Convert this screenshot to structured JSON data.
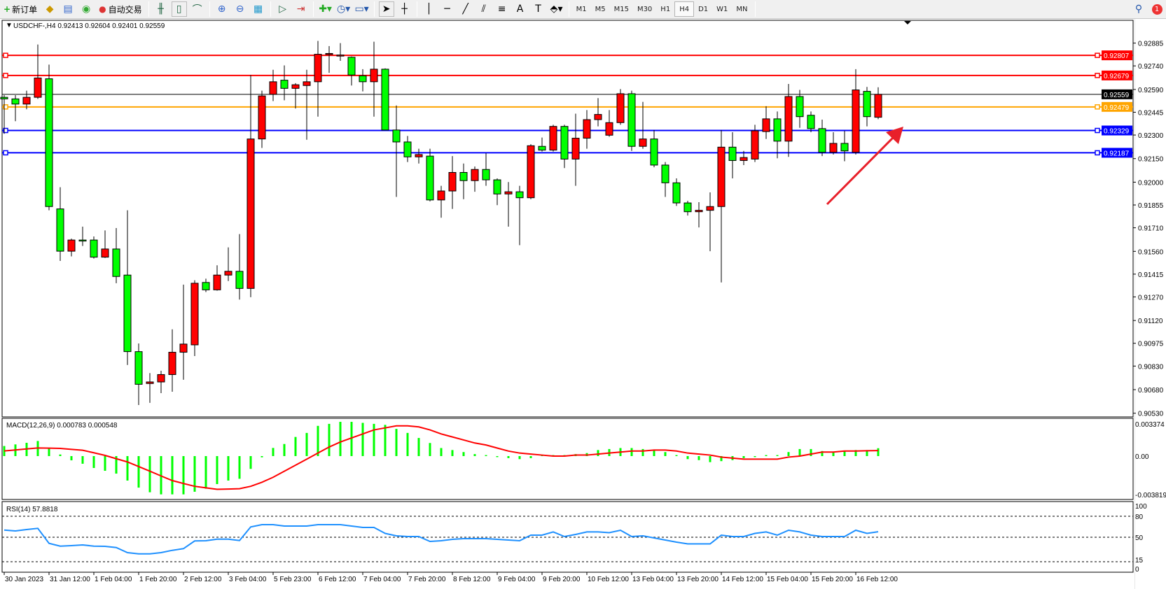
{
  "toolbar": {
    "new_order": "新订单",
    "auto_trading": "自动交易",
    "timeframes": [
      "M1",
      "M5",
      "M15",
      "M30",
      "H1",
      "H4",
      "D1",
      "W1",
      "MN"
    ],
    "active_timeframe": "H4",
    "notification_count": "1"
  },
  "chart": {
    "header": "USDCHF-,H4  0.92413 0.92604 0.92401 0.92559",
    "symbol": "USDCHF-",
    "timeframe": "H4",
    "ohlc": {
      "open": 0.92413,
      "high": 0.92604,
      "low": 0.92401,
      "close": 0.92559
    },
    "bull_color": "#ff0000",
    "bear_color": "#00ff00",
    "price_ticks": [
      "0.92885",
      "0.92740",
      "0.92590",
      "0.92445",
      "0.92300",
      "0.92150",
      "0.92000",
      "0.91855",
      "0.91710",
      "0.91560",
      "0.91415",
      "0.91270",
      "0.91120",
      "0.90975",
      "0.90830",
      "0.90680",
      "0.90530"
    ],
    "levels": [
      {
        "price": "0.92807",
        "color": "#ff0000"
      },
      {
        "price": "0.92679",
        "color": "#ff0000"
      },
      {
        "price": "0.92559",
        "color": "#000000"
      },
      {
        "price": "0.92479",
        "color": "#ffa500"
      },
      {
        "price": "0.92329",
        "color": "#0000ff"
      },
      {
        "price": "0.92187",
        "color": "#0000ff"
      }
    ],
    "time_labels": [
      "30 Jan 2023",
      "31 Jan 12:00",
      "1 Feb 04:00",
      "1 Feb 20:00",
      "2 Feb 12:00",
      "3 Feb 04:00",
      "5 Feb 23:00",
      "6 Feb 12:00",
      "7 Feb 04:00",
      "7 Feb 20:00",
      "8 Feb 12:00",
      "9 Feb 04:00",
      "9 Feb 20:00",
      "10 Feb 12:00",
      "13 Feb 04:00",
      "13 Feb 20:00",
      "14 Feb 12:00",
      "15 Feb 04:00",
      "15 Feb 20:00",
      "16 Feb 12:00"
    ],
    "annotation_arrow_color": "#e8202a",
    "candles_ohlc": [
      [
        0.9254,
        0.92554,
        0.92308,
        0.9253
      ],
      [
        0.9253,
        0.92554,
        0.92388,
        0.92497
      ],
      [
        0.92497,
        0.92582,
        0.92464,
        0.9254
      ],
      [
        0.9254,
        0.92876,
        0.9253,
        0.92663
      ],
      [
        0.92658,
        0.92748,
        0.91821,
        0.91845
      ],
      [
        0.9183,
        0.91968,
        0.91499,
        0.91561
      ],
      [
        0.91561,
        0.91641,
        0.91528,
        0.91632
      ],
      [
        0.91632,
        0.91717,
        0.91594,
        0.9163
      ],
      [
        0.91632,
        0.91655,
        0.91514,
        0.91523
      ],
      [
        0.91523,
        0.91693,
        0.91518,
        0.91575
      ],
      [
        0.91575,
        0.91708,
        0.91357,
        0.914
      ],
      [
        0.91409,
        0.91821,
        0.90837,
        0.90922
      ],
      [
        0.90922,
        0.90974,
        0.90582,
        0.90714
      ],
      [
        0.90719,
        0.90785,
        0.90596,
        0.90729
      ],
      [
        0.90729,
        0.908,
        0.90658,
        0.90776
      ],
      [
        0.90776,
        0.91064,
        0.90667,
        0.90918
      ],
      [
        0.90918,
        0.91348,
        0.90743,
        0.9097
      ],
      [
        0.90965,
        0.91376,
        0.90894,
        0.91357
      ],
      [
        0.91362,
        0.91386,
        0.91301,
        0.91315
      ],
      [
        0.91315,
        0.91471,
        0.9131,
        0.91409
      ],
      [
        0.91409,
        0.91585,
        0.91371,
        0.91433
      ],
      [
        0.91433,
        0.9167,
        0.91253,
        0.91324
      ],
      [
        0.91324,
        0.92682,
        0.91268,
        0.92275
      ],
      [
        0.92275,
        0.92582,
        0.92218,
        0.92549
      ],
      [
        0.92559,
        0.92715,
        0.92516,
        0.92639
      ],
      [
        0.92649,
        0.92743,
        0.92521,
        0.92597
      ],
      [
        0.92597,
        0.9263,
        0.92469,
        0.9262
      ],
      [
        0.92615,
        0.92715,
        0.9227,
        0.92639
      ],
      [
        0.92639,
        0.92899,
        0.92417,
        0.92814
      ],
      [
        0.92814,
        0.92866,
        0.92696,
        0.92819
      ],
      [
        0.92805,
        0.92885,
        0.92772,
        0.92809
      ],
      [
        0.92795,
        0.928,
        0.92615,
        0.92682
      ],
      [
        0.92677,
        0.92719,
        0.92578,
        0.92639
      ],
      [
        0.92639,
        0.92894,
        0.92417,
        0.92719
      ],
      [
        0.92719,
        0.92724,
        0.92332,
        0.92332
      ],
      [
        0.92332,
        0.92488,
        0.91906,
        0.92256
      ],
      [
        0.92256,
        0.92294,
        0.92128,
        0.92161
      ],
      [
        0.92161,
        0.92213,
        0.92119,
        0.92176
      ],
      [
        0.92166,
        0.92213,
        0.91878,
        0.91887
      ],
      [
        0.91887,
        0.91977,
        0.91774,
        0.91944
      ],
      [
        0.91944,
        0.92166,
        0.9183,
        0.92062
      ],
      [
        0.92062,
        0.92119,
        0.91892,
        0.9201
      ],
      [
        0.9201,
        0.921,
        0.91939,
        0.92081
      ],
      [
        0.92081,
        0.92185,
        0.91977,
        0.92015
      ],
      [
        0.92015,
        0.92024,
        0.91854,
        0.91925
      ],
      [
        0.91925,
        0.92001,
        0.91717,
        0.91939
      ],
      [
        0.91939,
        0.91977,
        0.91599,
        0.91901
      ],
      [
        0.91901,
        0.92242,
        0.91892,
        0.92232
      ],
      [
        0.92228,
        0.92284,
        0.92195,
        0.92204
      ],
      [
        0.92204,
        0.92365,
        0.92195,
        0.92355
      ],
      [
        0.92355,
        0.92365,
        0.9209,
        0.92147
      ],
      [
        0.92147,
        0.92436,
        0.91977,
        0.9228
      ],
      [
        0.9228,
        0.92459,
        0.92213,
        0.92398
      ],
      [
        0.92398,
        0.92535,
        0.92355,
        0.92431
      ],
      [
        0.92299,
        0.92459,
        0.92289,
        0.92379
      ],
      [
        0.92379,
        0.92592,
        0.92365,
        0.92563
      ],
      [
        0.92563,
        0.92582,
        0.92199,
        0.92228
      ],
      [
        0.92228,
        0.92511,
        0.92213,
        0.92275
      ],
      [
        0.92275,
        0.92332,
        0.92095,
        0.92109
      ],
      [
        0.92109,
        0.92128,
        0.91906,
        0.91996
      ],
      [
        0.91996,
        0.92024,
        0.91849,
        0.91868
      ],
      [
        0.91868,
        0.91882,
        0.91788,
        0.91812
      ],
      [
        0.91812,
        0.91873,
        0.91712,
        0.91821
      ],
      [
        0.91821,
        0.91935,
        0.91561,
        0.91845
      ],
      [
        0.91845,
        0.92332,
        0.91362,
        0.92223
      ],
      [
        0.92223,
        0.92318,
        0.92024,
        0.92138
      ],
      [
        0.92138,
        0.92199,
        0.92109,
        0.92157
      ],
      [
        0.92147,
        0.92365,
        0.92128,
        0.92327
      ],
      [
        0.92322,
        0.92483,
        0.92275,
        0.92403
      ],
      [
        0.92403,
        0.9245,
        0.92152,
        0.92261
      ],
      [
        0.92261,
        0.92625,
        0.92161,
        0.92545
      ],
      [
        0.92545,
        0.92587,
        0.92346,
        0.92417
      ],
      [
        0.92426,
        0.9245,
        0.92318,
        0.92341
      ],
      [
        0.92341,
        0.92398,
        0.92166,
        0.9219
      ],
      [
        0.9219,
        0.92318,
        0.92176,
        0.92247
      ],
      [
        0.92247,
        0.92327,
        0.92133,
        0.92199
      ],
      [
        0.9219,
        0.92719,
        0.92176,
        0.92587
      ],
      [
        0.92578,
        0.92606,
        0.92355,
        0.92417
      ],
      [
        0.92413,
        0.92604,
        0.92401,
        0.92559
      ]
    ]
  },
  "macd": {
    "label": "MACD(12,26,9) 0.000783 0.000548",
    "range": [
      -0.003819,
      0.003374
    ],
    "ticks": [
      "0.003374",
      "0.00",
      "-0.003819"
    ],
    "hist_color": "#00ff00",
    "signal_color": "#ff0000",
    "histogram": [
      0.001,
      0.00116,
      0.00132,
      0.0015,
      0.00081,
      0.00016,
      -0.00042,
      -0.00076,
      -0.00118,
      -0.00146,
      -0.00174,
      -0.00243,
      -0.00313,
      -0.00359,
      -0.0038,
      -0.0038,
      -0.0038,
      -0.00354,
      -0.00324,
      -0.00278,
      -0.00243,
      -0.00225,
      -0.00127,
      -0.00012,
      0.00081,
      0.0012,
      0.0019,
      0.0023,
      0.003,
      0.0032,
      0.0034,
      0.0034,
      0.0033,
      0.0032,
      0.0031,
      0.0027,
      0.0023,
      0.0018,
      0.0013,
      0.0008,
      0.0006,
      0.0004,
      0.0002,
      0.0001,
      -0.0001,
      -0.0002,
      -0.0003,
      -0.0002,
      0.0001,
      0.0001,
      0.0001,
      0.0002,
      0.0003,
      0.0006,
      0.0007,
      0.0008,
      0.0008,
      0.0007,
      0.0006,
      0.0004,
      0.0001,
      -0.0003,
      -0.0004,
      -0.0006,
      -0.0005,
      -0.0004,
      -0.0002,
      -0.0001,
      0.0001,
      0.0001,
      0.0004,
      0.0007,
      0.0007,
      0.0005,
      0.0004,
      0.0005,
      0.0006,
      0.0006,
      0.000783
    ],
    "signal": [
      0.00051,
      0.00061,
      0.00071,
      0.00081,
      0.00079,
      0.00076,
      0.00067,
      0.00058,
      0.00033,
      7e-05,
      -0.00026,
      -0.00058,
      -0.00104,
      -0.0015,
      -0.00197,
      -0.00243,
      -0.00272,
      -0.003,
      -0.00315,
      -0.0033,
      -0.00327,
      -0.00324,
      -0.003,
      -0.0026,
      -0.0021,
      -0.0015,
      -0.0009,
      -0.0003,
      0.0003,
      0.0009,
      0.0014,
      0.0018,
      0.0022,
      0.0026,
      0.0028,
      0.003,
      0.003,
      0.0029,
      0.0026,
      0.0022,
      0.0019,
      0.0016,
      0.0013,
      0.0011,
      0.0008,
      0.0005,
      0.0003,
      0.0002,
      0.0001,
      0,
      0,
      0.0001,
      0.0001,
      0.0002,
      0.0003,
      0.0004,
      0.0005,
      0.0005,
      0.0006,
      0.0006,
      0.0005,
      0.0003,
      0.0002,
      0.0001,
      -0.0001,
      -0.0002,
      -0.0003,
      -0.0003,
      -0.0003,
      -0.0003,
      -0.0001,
      0,
      0.0002,
      0.0004,
      0.0004,
      0.0005,
      0.0005,
      0.00053,
      0.000548
    ]
  },
  "rsi": {
    "label": "RSI(14) 57.8818",
    "ticks": [
      "100",
      "80",
      "50",
      "15",
      "0"
    ],
    "levels": [
      80,
      50,
      15
    ],
    "color": "#1e90ff",
    "values": [
      60.3,
      59,
      61,
      62.7,
      41.3,
      37.3,
      38,
      39,
      37.3,
      37,
      35.3,
      28,
      26.3,
      26.3,
      28,
      31.3,
      33.7,
      44.7,
      45,
      47.3,
      47.3,
      45.3,
      64.7,
      68,
      68,
      66,
      66,
      66,
      68,
      68,
      68,
      66,
      64,
      64,
      55.5,
      52,
      51,
      51,
      44,
      45,
      47,
      48,
      48,
      48,
      47,
      46,
      45,
      53,
      53,
      57.6,
      51,
      54,
      57.6,
      57.6,
      56.5,
      60,
      51,
      52,
      49,
      46,
      43,
      40.5,
      40.5,
      40.5,
      53,
      51,
      51,
      55.5,
      57.6,
      53,
      60,
      57.6,
      53,
      51,
      51,
      51,
      60,
      55.5,
      57.8818
    ]
  }
}
